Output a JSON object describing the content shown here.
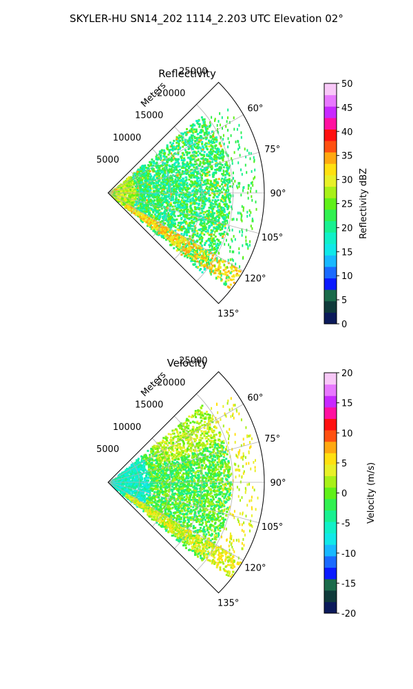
{
  "suptitle": "SKYLER-HU  SN14_202  1114_2.203 UTC Elevation 02°",
  "chart_data": [
    {
      "type": "polar_sector_radar",
      "title": "Reflectivity",
      "radial_label": "Meters",
      "radial_ticks": [
        5000,
        10000,
        15000,
        20000,
        25000
      ],
      "radial_tick_labels": [
        "5000",
        "10000",
        "15000",
        "20000",
        "25000"
      ],
      "r_max": 25000,
      "azimuth_range_deg": [
        45,
        135
      ],
      "azimuth_ticks": [
        "60°",
        "75°",
        "90°",
        "105°",
        "120°",
        "135°"
      ],
      "grid": true,
      "colorbar": {
        "label": "Reflectivity dBZ",
        "range": [
          0,
          50
        ],
        "ticks": [
          "0",
          "5",
          "10",
          "15",
          "20",
          "25",
          "30",
          "35",
          "40",
          "45",
          "50"
        ],
        "colors": [
          "#0b1a5a",
          "#0f3a3a",
          "#1a6a4a",
          "#0a1aff",
          "#1a6aff",
          "#18b8ff",
          "#10e8e8",
          "#10f0c8",
          "#18f090",
          "#30f050",
          "#60f018",
          "#a8f018",
          "#e8f028",
          "#ffe010",
          "#ffa810",
          "#ff5010",
          "#ff1010",
          "#ff10a0",
          "#c828ff",
          "#e878ff",
          "#f8c8f8"
        ]
      }
    },
    {
      "type": "polar_sector_radar",
      "title": "Velocity",
      "radial_label": "Meters",
      "radial_ticks": [
        5000,
        10000,
        15000,
        20000,
        25000
      ],
      "radial_tick_labels": [
        "5000",
        "10000",
        "15000",
        "20000",
        "25000"
      ],
      "r_max": 25000,
      "azimuth_range_deg": [
        45,
        135
      ],
      "azimuth_ticks": [
        "60°",
        "75°",
        "90°",
        "105°",
        "120°",
        "135°"
      ],
      "grid": true,
      "colorbar": {
        "label": "Velocity (m/s)",
        "range": [
          -20,
          20
        ],
        "ticks": [
          "-20",
          "-15",
          "-10",
          "-5",
          "0",
          "5",
          "10",
          "15",
          "20"
        ],
        "colors": [
          "#0b1a5a",
          "#0f3a3a",
          "#1a6a4a",
          "#0a1aff",
          "#1a6aff",
          "#18b8ff",
          "#10e8e8",
          "#10f0c8",
          "#18f090",
          "#30f050",
          "#60f018",
          "#a8f018",
          "#e8f028",
          "#ffe010",
          "#ffa810",
          "#ff5010",
          "#ff1010",
          "#ff10a0",
          "#c828ff",
          "#e878ff",
          "#f8c8f8"
        ]
      }
    }
  ]
}
